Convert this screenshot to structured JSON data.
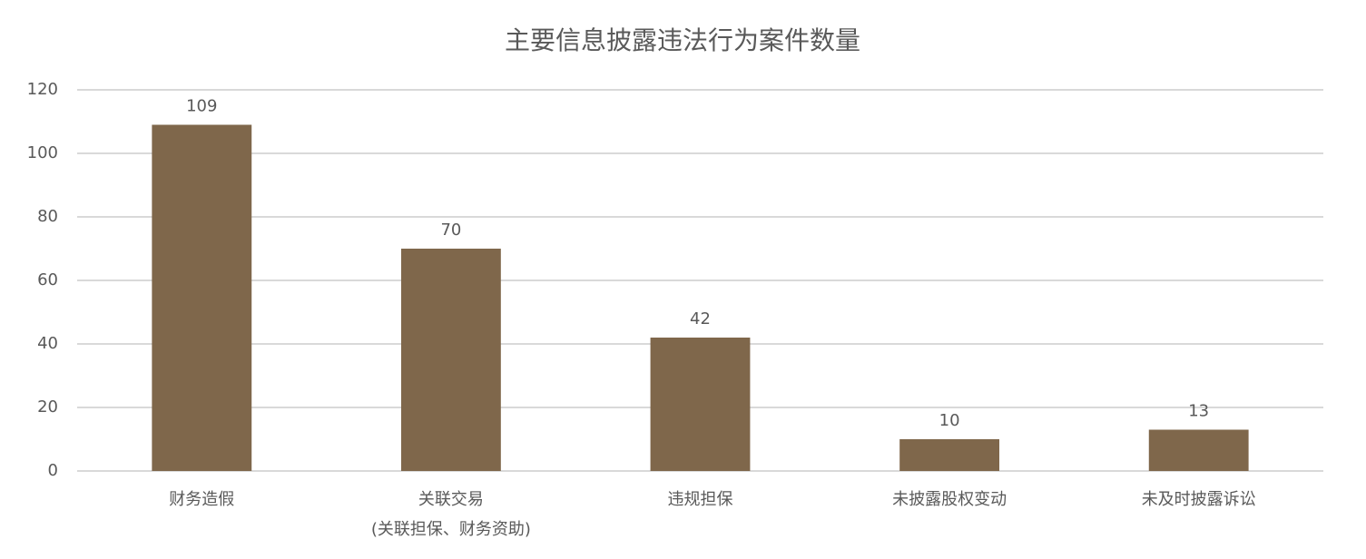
{
  "chart_data": {
    "type": "bar",
    "title": "主要信息披露违法行为案件数量",
    "categories": [
      "财务造假",
      [
        "关联交易",
        "(关联担保、财务资助)"
      ],
      "违规担保",
      "未披露股权变动",
      "未及时披露诉讼"
    ],
    "values": [
      109,
      70,
      42,
      10,
      13
    ],
    "color": "#7f674b",
    "ylim": [
      0,
      120
    ],
    "yticks": [
      0,
      20,
      40,
      60,
      80,
      100,
      120
    ],
    "grid": true
  }
}
